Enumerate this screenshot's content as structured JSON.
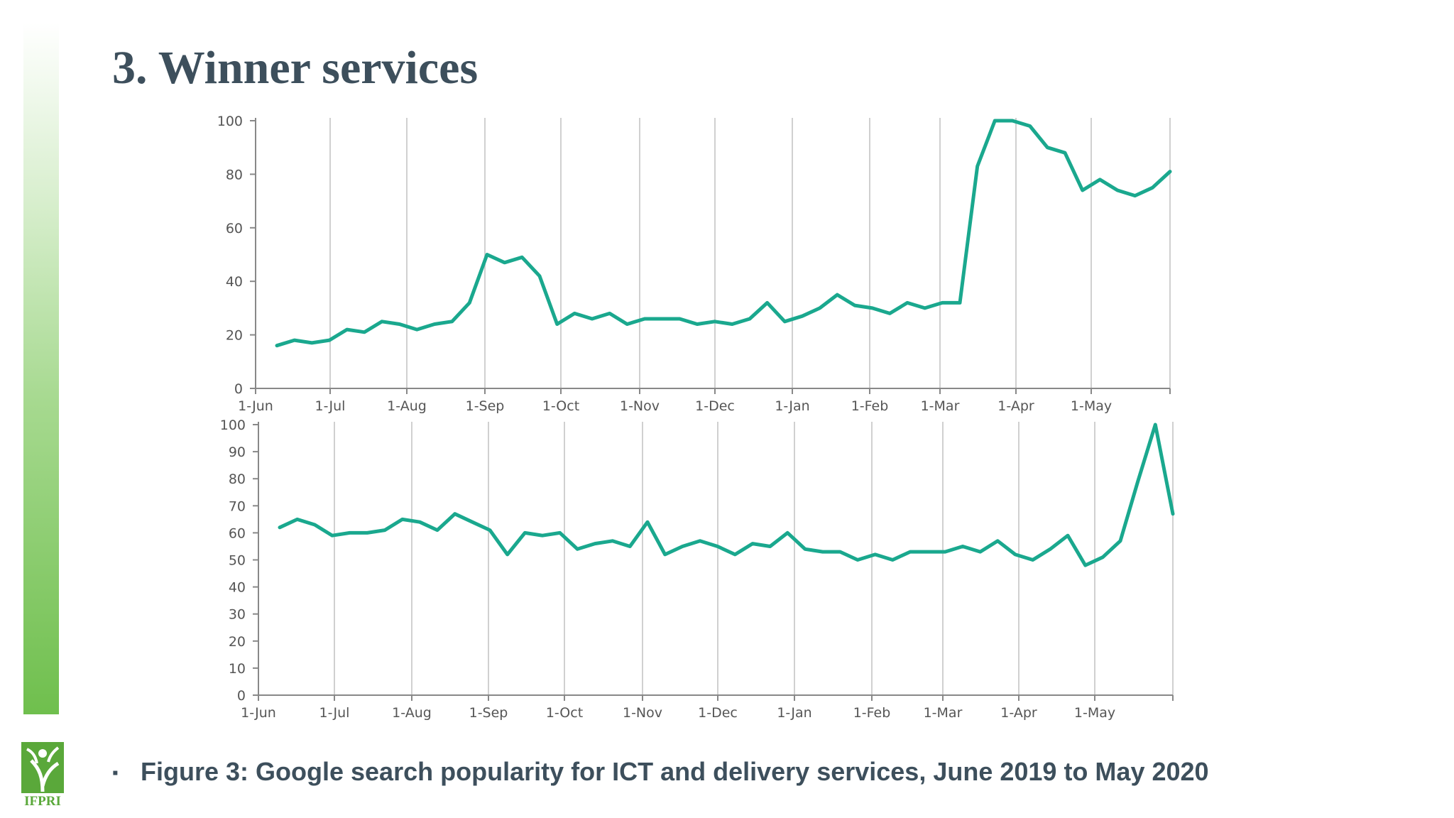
{
  "slide": {
    "title": "3. Winner services",
    "caption": "Figure 3: Google search popularity for ICT and delivery services, June 2019 to May 2020",
    "bullet": "▪",
    "logo_text": "IFPRI"
  },
  "colors": {
    "line": "#1aa88e",
    "title": "#3d4f5c",
    "grid": "#d0d0d0",
    "axis": "#888888",
    "brand_green": "#6fbf4d"
  },
  "chart_data": [
    {
      "type": "line",
      "xlabel": "",
      "ylabel": "",
      "ylim": [
        0,
        100
      ],
      "yticks": [
        0,
        20,
        40,
        60,
        80,
        100
      ],
      "xtick_labels": [
        "1-Jun",
        "1-Jul",
        "1-Aug",
        "1-Sep",
        "1-Oct",
        "1-Nov",
        "1-Dec",
        "1-Jan",
        "1-Feb",
        "1-Mar",
        "1-Apr",
        "1-May"
      ],
      "grid": "vertical",
      "series": [
        {
          "values": [
            16,
            18,
            17,
            18,
            22,
            21,
            25,
            24,
            22,
            24,
            25,
            32,
            50,
            47,
            49,
            42,
            24,
            28,
            26,
            28,
            24,
            26,
            26,
            26,
            24,
            25,
            24,
            26,
            32,
            25,
            27,
            30,
            35,
            31,
            30,
            28,
            32,
            30,
            32,
            32,
            83,
            100,
            100,
            98,
            90,
            88,
            74,
            78,
            74,
            72,
            75,
            81
          ]
        }
      ]
    },
    {
      "type": "line",
      "xlabel": "",
      "ylabel": "",
      "ylim": [
        0,
        100
      ],
      "yticks": [
        0,
        10,
        20,
        30,
        40,
        50,
        60,
        70,
        80,
        90,
        100
      ],
      "xtick_labels": [
        "1-Jun",
        "1-Jul",
        "1-Aug",
        "1-Sep",
        "1-Oct",
        "1-Nov",
        "1-Dec",
        "1-Jan",
        "1-Feb",
        "1-Mar",
        "1-Apr",
        "1-May"
      ],
      "grid": "vertical",
      "series": [
        {
          "values": [
            62,
            65,
            63,
            59,
            60,
            60,
            61,
            65,
            64,
            61,
            67,
            64,
            61,
            52,
            60,
            59,
            60,
            54,
            56,
            57,
            55,
            64,
            52,
            55,
            57,
            55,
            52,
            56,
            55,
            60,
            54,
            53,
            53,
            50,
            52,
            50,
            53,
            53,
            53,
            55,
            53,
            57,
            52,
            50,
            54,
            59,
            48,
            51,
            57,
            79,
            100,
            67
          ]
        }
      ]
    }
  ]
}
